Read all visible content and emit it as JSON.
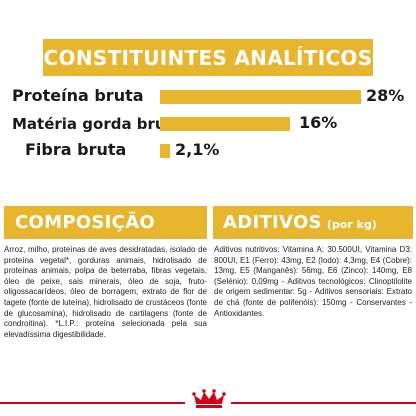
{
  "analytics": {
    "title": "CONSTITUINTES ANALÍTICOS",
    "rows": [
      {
        "label": "Proteína bruta",
        "value": "28%",
        "fraction": 0.28
      },
      {
        "label": "Matéria gorda bruta",
        "value": "16%",
        "fraction": 0.16
      },
      {
        "label": "Fibra bruta",
        "value": "2,1%",
        "fraction": 0.021
      }
    ]
  },
  "composition": {
    "title": "COMPOSIÇÃO",
    "text": "Arroz, milho, proteínas de aves desidratadas, isolado de proteína vegetal*, gorduras animais, hidrolisado de proteínas animais, polpa de beterraba, fibras vegetais, óleo de peixe, sais minerais, óleo de soja, fruto-oligossacarídeos, óleo de borragem, extrato de flor de tagete (fonte de luteína), hidrolisado de crustáceos (fonte de glucosamina), hidrolisado de cartilagens (fonte de condroitina). *L.I.P.: proteína selecionada pela sua elevadíssima digestibilidade."
  },
  "additives": {
    "title": "ADITIVOS",
    "unit": "(por kg)",
    "text": "Aditivos nutritivos: Vitamina A: 30.500UI, Vitamina D3: 800UI, E1 (Ferro): 43mg, E2 (Iodo): 4,3mg, E4 (Cobre): 13mg, E5 (Manganês): 56mg, E6 (Zinco): 140mg, E8 (Selénio): 0,09mg - Aditivos tecnológicos: Clinoptilolite de origem sedimentar: 5g - Aditivos sensoriais: Extrato de chá (fonte de polifenóis): 150mg - Conservantes - Antioxidantes."
  },
  "colors": {
    "accent": "#e8b62e",
    "text": "#1a1a1a",
    "brand_red": "#d0021b"
  },
  "footer": {
    "logo_icon": "royal-canin-crown-icon"
  }
}
